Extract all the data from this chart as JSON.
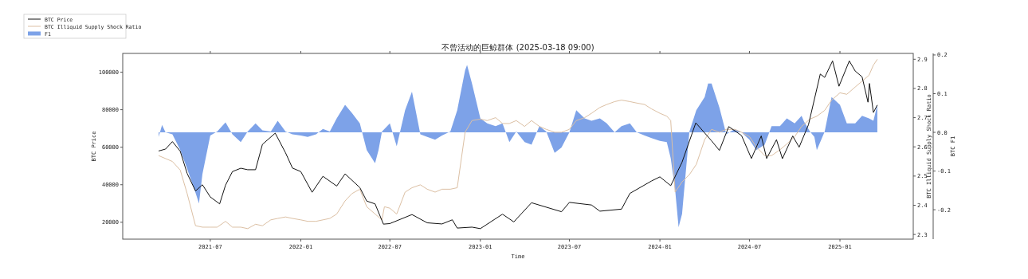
{
  "chart_data": {
    "type": "line",
    "title": "不曾活动的巨鲸群体 (2025-03-18 09:00)",
    "xlabel": "Time",
    "ylabel": "BTC Price",
    "y2label": "BTC Illiquid Supply Shock Ratio",
    "y3label": "BTC F1",
    "xlim": [
      "2021-01-04",
      "2025-05-30"
    ],
    "xticks": [
      "2021-07",
      "2022-01",
      "2022-07",
      "2023-01",
      "2023-07",
      "2024-01",
      "2024-07",
      "2025-01"
    ],
    "ylim": [
      11000,
      110000
    ],
    "yticks": [
      20000,
      40000,
      60000,
      80000,
      100000
    ],
    "y2lim": [
      2.284,
      2.92
    ],
    "y2ticks": [
      2.3,
      2.4,
      2.5,
      2.6,
      2.7,
      2.8,
      2.9
    ],
    "y3lim": [
      -0.276,
      0.204
    ],
    "y3ticks": [
      -0.2,
      -0.1,
      {
        "value": 0,
        "label": "0.0"
      },
      0.1,
      0.2
    ],
    "legend": "top left",
    "grid": false,
    "series": [
      {
        "name": "BTC Price",
        "color": "#111111",
        "x": [
          "2021-03-18",
          "2021-04-01",
          "2021-04-15",
          "2021-05-01",
          "2021-05-15",
          "2021-06-01",
          "2021-06-15",
          "2021-07-01",
          "2021-07-20",
          "2021-08-01",
          "2021-08-15",
          "2021-09-01",
          "2021-09-15",
          "2021-10-01",
          "2021-10-15",
          "2021-11-10",
          "2021-12-01",
          "2021-12-15",
          "2022-01-01",
          "2022-01-24",
          "2022-02-15",
          "2022-03-15",
          "2022-04-01",
          "2022-05-01",
          "2022-05-15",
          "2022-06-01",
          "2022-06-18",
          "2022-07-01",
          "2022-08-15",
          "2022-09-15",
          "2022-10-15",
          "2022-11-05",
          "2022-11-15",
          "2022-12-15",
          "2023-01-01",
          "2023-02-15",
          "2023-03-10",
          "2023-04-15",
          "2023-06-15",
          "2023-07-01",
          "2023-08-15",
          "2023-09-01",
          "2023-10-15",
          "2023-11-01",
          "2023-12-15",
          "2024-01-01",
          "2024-01-23",
          "2024-02-15",
          "2024-03-14",
          "2024-04-15",
          "2024-05-01",
          "2024-05-20",
          "2024-06-15",
          "2024-07-05",
          "2024-07-25",
          "2024-08-05",
          "2024-08-25",
          "2024-09-06",
          "2024-09-27",
          "2024-10-10",
          "2024-10-29",
          "2024-11-22",
          "2024-12-01",
          "2024-12-17",
          "2024-12-30",
          "2025-01-20",
          "2025-02-01",
          "2025-02-15",
          "2025-02-27",
          "2025-03-02",
          "2025-03-10",
          "2025-03-18"
        ],
        "values": [
          58000,
          59000,
          63000,
          57800,
          46000,
          36700,
          40000,
          33500,
          29800,
          39800,
          47000,
          48800,
          48000,
          48000,
          61500,
          67500,
          57000,
          48900,
          47000,
          36000,
          44500,
          39300,
          45800,
          38500,
          31300,
          29800,
          19000,
          19300,
          24100,
          19700,
          19100,
          21300,
          16900,
          17400,
          16600,
          24300,
          20200,
          30400,
          25600,
          30600,
          29200,
          25900,
          27000,
          35400,
          42000,
          44200,
          39500,
          52000,
          73000,
          63400,
          58300,
          71000,
          66200,
          54000,
          66000,
          54000,
          64000,
          53900,
          66000,
          60000,
          72000,
          99000,
          97200,
          106000,
          92500,
          106000,
          100600,
          97500,
          84000,
          94000,
          78500,
          82500
        ]
      },
      {
        "name": "BTC Illiquid Supply Shock Ratio",
        "axis": "y2",
        "color": "#dcc0a4",
        "x": [
          "2021-03-18",
          "2021-04-15",
          "2021-05-01",
          "2021-05-15",
          "2021-06-01",
          "2021-06-15",
          "2021-07-01",
          "2021-07-15",
          "2021-08-01",
          "2021-08-15",
          "2021-09-01",
          "2021-09-15",
          "2021-10-01",
          "2021-10-15",
          "2021-11-01",
          "2021-11-15",
          "2021-12-01",
          "2021-12-15",
          "2022-01-01",
          "2022-01-15",
          "2022-02-01",
          "2022-02-15",
          "2022-03-01",
          "2022-03-15",
          "2022-04-01",
          "2022-04-15",
          "2022-05-01",
          "2022-05-15",
          "2022-06-01",
          "2022-06-15",
          "2022-06-20",
          "2022-07-01",
          "2022-07-15",
          "2022-08-01",
          "2022-08-15",
          "2022-09-01",
          "2022-09-15",
          "2022-10-01",
          "2022-10-15",
          "2022-11-01",
          "2022-11-15",
          "2022-12-01",
          "2022-12-15",
          "2023-01-01",
          "2023-01-15",
          "2023-02-01",
          "2023-02-15",
          "2023-03-01",
          "2023-03-15",
          "2023-04-01",
          "2023-04-15",
          "2023-05-01",
          "2023-05-15",
          "2023-06-01",
          "2023-06-15",
          "2023-07-01",
          "2023-07-15",
          "2023-08-01",
          "2023-08-15",
          "2023-09-01",
          "2023-09-15",
          "2023-10-01",
          "2023-10-15",
          "2023-11-01",
          "2023-11-15",
          "2023-12-01",
          "2023-12-15",
          "2024-01-01",
          "2024-01-15",
          "2024-01-23",
          "2024-02-01",
          "2024-02-15",
          "2024-03-01",
          "2024-03-15",
          "2024-04-01",
          "2024-04-15",
          "2024-05-01",
          "2024-05-15",
          "2024-06-01",
          "2024-06-15",
          "2024-07-01",
          "2024-07-15",
          "2024-08-01",
          "2024-08-15",
          "2024-09-01",
          "2024-09-15",
          "2024-10-01",
          "2024-10-15",
          "2024-11-01",
          "2024-11-15",
          "2024-12-01",
          "2024-12-15",
          "2025-01-01",
          "2025-01-15",
          "2025-02-01",
          "2025-02-15",
          "2025-03-01",
          "2025-03-10",
          "2025-03-18"
        ],
        "values": [
          2.57,
          2.55,
          2.52,
          2.44,
          2.33,
          2.325,
          2.325,
          2.325,
          2.345,
          2.325,
          2.325,
          2.32,
          2.335,
          2.33,
          2.35,
          2.355,
          2.36,
          2.355,
          2.35,
          2.345,
          2.345,
          2.35,
          2.355,
          2.37,
          2.415,
          2.44,
          2.455,
          2.395,
          2.37,
          2.35,
          2.395,
          2.39,
          2.37,
          2.445,
          2.46,
          2.47,
          2.455,
          2.445,
          2.455,
          2.455,
          2.46,
          2.65,
          2.69,
          2.695,
          2.69,
          2.7,
          2.68,
          2.68,
          2.69,
          2.67,
          2.69,
          2.67,
          2.66,
          2.65,
          2.65,
          2.66,
          2.69,
          2.7,
          2.715,
          2.735,
          2.745,
          2.755,
          2.76,
          2.755,
          2.75,
          2.745,
          2.73,
          2.715,
          2.705,
          2.69,
          2.445,
          2.48,
          2.505,
          2.54,
          2.625,
          2.66,
          2.65,
          2.66,
          2.66,
          2.65,
          2.635,
          2.6,
          2.57,
          2.57,
          2.59,
          2.61,
          2.635,
          2.67,
          2.695,
          2.705,
          2.725,
          2.76,
          2.785,
          2.78,
          2.805,
          2.825,
          2.845,
          2.88,
          2.9
        ]
      },
      {
        "name": "F1",
        "type": "area",
        "axis": "y3",
        "color": "#7da2e8",
        "x": [
          "2021-03-18",
          "2021-03-25",
          "2021-04-01",
          "2021-04-15",
          "2021-05-01",
          "2021-05-15",
          "2021-06-01",
          "2021-06-08",
          "2021-06-15",
          "2021-07-01",
          "2021-07-15",
          "2021-08-01",
          "2021-08-15",
          "2021-09-01",
          "2021-09-15",
          "2021-10-01",
          "2021-10-15",
          "2021-11-01",
          "2021-11-15",
          "2021-12-01",
          "2021-12-15",
          "2022-01-01",
          "2022-01-15",
          "2022-02-01",
          "2022-02-15",
          "2022-03-01",
          "2022-03-15",
          "2022-04-01",
          "2022-04-15",
          "2022-05-01",
          "2022-05-15",
          "2022-06-01",
          "2022-06-08",
          "2022-06-15",
          "2022-07-01",
          "2022-07-15",
          "2022-08-01",
          "2022-08-15",
          "2022-09-01",
          "2022-09-15",
          "2022-10-01",
          "2022-10-15",
          "2022-11-01",
          "2022-11-15",
          "2022-12-01",
          "2022-12-05",
          "2022-12-15",
          "2023-01-01",
          "2023-01-15",
          "2023-02-01",
          "2023-02-15",
          "2023-03-01",
          "2023-03-15",
          "2023-04-01",
          "2023-04-15",
          "2023-05-01",
          "2023-05-15",
          "2023-06-01",
          "2023-06-15",
          "2023-07-01",
          "2023-07-15",
          "2023-08-01",
          "2023-08-15",
          "2023-09-01",
          "2023-09-15",
          "2023-10-01",
          "2023-10-15",
          "2023-11-01",
          "2023-11-15",
          "2023-12-01",
          "2023-12-15",
          "2024-01-01",
          "2024-01-15",
          "2024-01-23",
          "2024-02-01",
          "2024-02-08",
          "2024-02-15",
          "2024-03-01",
          "2024-03-15",
          "2024-04-01",
          "2024-04-08",
          "2024-04-15",
          "2024-05-01",
          "2024-05-15",
          "2024-06-01",
          "2024-06-15",
          "2024-07-01",
          "2024-07-15",
          "2024-08-01",
          "2024-08-15",
          "2024-09-01",
          "2024-09-15",
          "2024-10-01",
          "2024-10-15",
          "2024-10-20",
          "2024-11-01",
          "2024-11-10",
          "2024-11-15",
          "2024-12-01",
          "2024-12-15",
          "2025-01-01",
          "2025-01-15",
          "2025-02-01",
          "2025-02-15",
          "2025-03-01",
          "2025-03-10",
          "2025-03-18"
        ],
        "values": [
          -0.012,
          0.019,
          0,
          -0.005,
          -0.046,
          -0.094,
          -0.156,
          -0.184,
          -0.108,
          -0.008,
          0.002,
          0.026,
          -0.005,
          -0.025,
          0.002,
          0.023,
          0.005,
          0.002,
          0.03,
          0.002,
          -0.005,
          -0.008,
          -0.012,
          -0.005,
          0.009,
          0.002,
          0.036,
          0.071,
          0.05,
          0.023,
          -0.046,
          -0.08,
          -0.046,
          0.002,
          0.023,
          -0.036,
          0.057,
          0.105,
          -0.005,
          -0.012,
          -0.019,
          -0.008,
          0.002,
          0.057,
          0.16,
          0.174,
          0.126,
          0.036,
          0.023,
          0.016,
          0.023,
          -0.025,
          0.002,
          -0.025,
          -0.032,
          0.016,
          0.002,
          -0.053,
          -0.039,
          0,
          0.057,
          0.036,
          0.03,
          0.036,
          0.023,
          0,
          0.016,
          0.023,
          0,
          -0.008,
          -0.015,
          -0.022,
          -0.025,
          -0.067,
          -0.149,
          -0.245,
          -0.211,
          0.002,
          0.057,
          0.091,
          0.126,
          0.126,
          0.064,
          -0.005,
          0.009,
          0,
          -0.019,
          -0.046,
          -0.032,
          0.016,
          0.016,
          0.036,
          0.023,
          0.043,
          0.028,
          0.002,
          -0.012,
          -0.046,
          0.002,
          0.091,
          0.071,
          0.023,
          0.023,
          0.043,
          0.036,
          0.03,
          0.071
        ]
      }
    ]
  }
}
